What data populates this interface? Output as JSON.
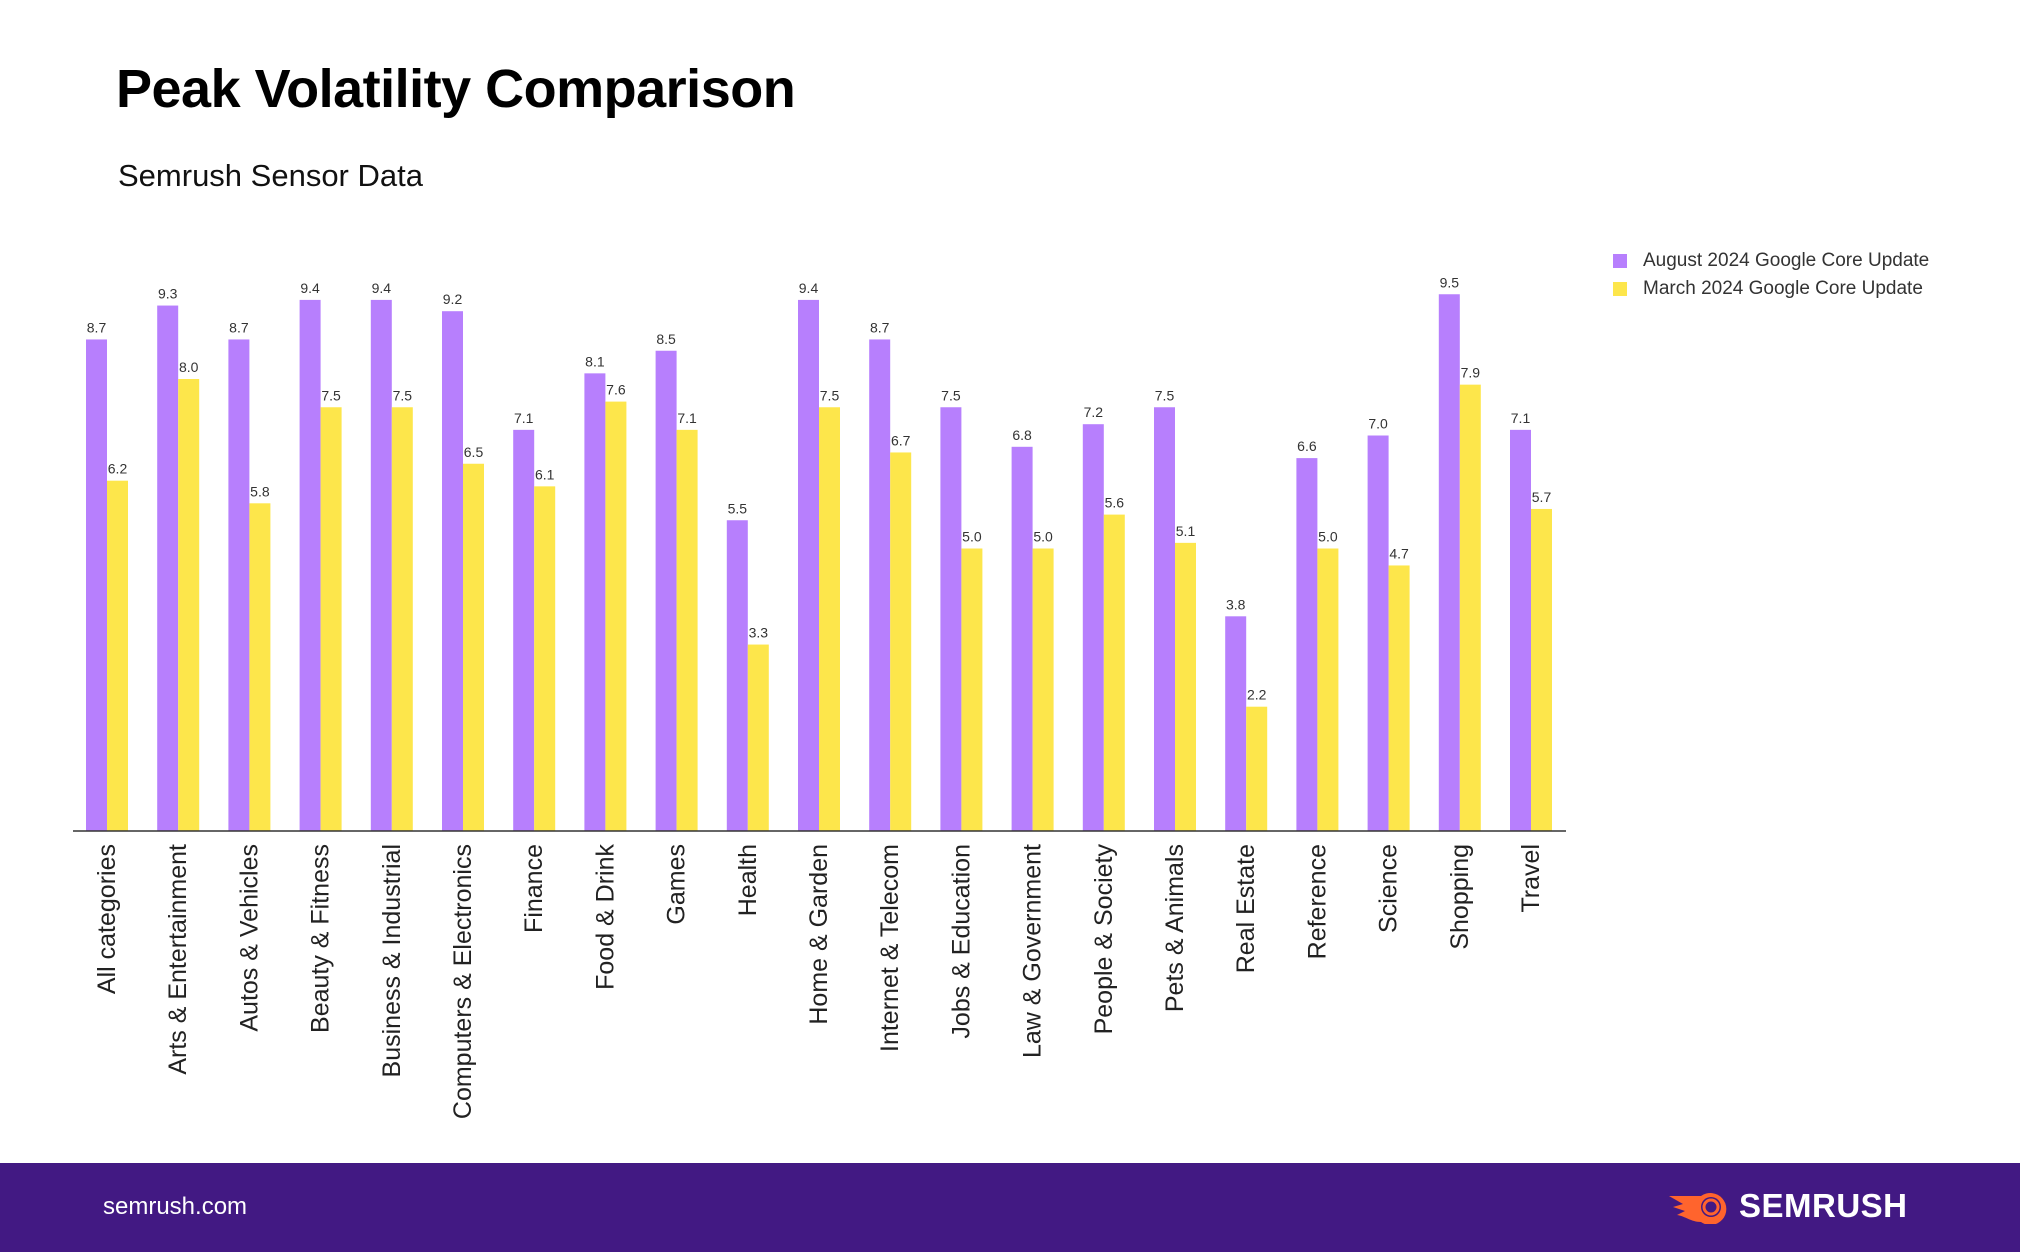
{
  "title": "Peak Volatility Comparison",
  "subtitle": "Semrush Sensor Data",
  "footer": {
    "url": "semrush.com",
    "logo_text": "SEMRUSH"
  },
  "colors": {
    "august": "#b77ffd",
    "march": "#fde64b",
    "footer_bg": "#421983",
    "logo_orange": "#ff642d"
  },
  "chart_data": {
    "type": "bar",
    "title": "Peak Volatility Comparison",
    "xlabel": "",
    "ylabel": "",
    "ylim": [
      0,
      10
    ],
    "grid": false,
    "legend_position": "top-right",
    "categories": [
      "All categories",
      "Arts & Entertainment",
      "Autos & Vehicles",
      "Beauty & Fitness",
      "Business & Industrial",
      "Computers & Electronics",
      "Finance",
      "Food & Drink",
      "Games",
      "Health",
      "Home & Garden",
      "Internet & Telecom",
      "Jobs & Education",
      "Law & Government",
      "People & Society",
      "Pets & Animals",
      "Real Estate",
      "Reference",
      "Science",
      "Shopping",
      "Travel"
    ],
    "series": [
      {
        "name": "August 2024 Google Core Update",
        "values": [
          8.7,
          9.3,
          8.7,
          9.4,
          9.4,
          9.2,
          7.1,
          8.1,
          8.5,
          5.5,
          9.4,
          8.7,
          7.5,
          6.8,
          7.2,
          7.5,
          3.8,
          6.6,
          7.0,
          9.5,
          7.1
        ]
      },
      {
        "name": "March 2024 Google Core Update",
        "values": [
          6.2,
          8.0,
          5.8,
          7.5,
          7.5,
          6.5,
          6.1,
          7.6,
          7.1,
          3.3,
          7.5,
          6.7,
          5.0,
          5.0,
          5.6,
          5.1,
          2.2,
          5.0,
          4.7,
          7.9,
          5.7
        ]
      }
    ]
  }
}
